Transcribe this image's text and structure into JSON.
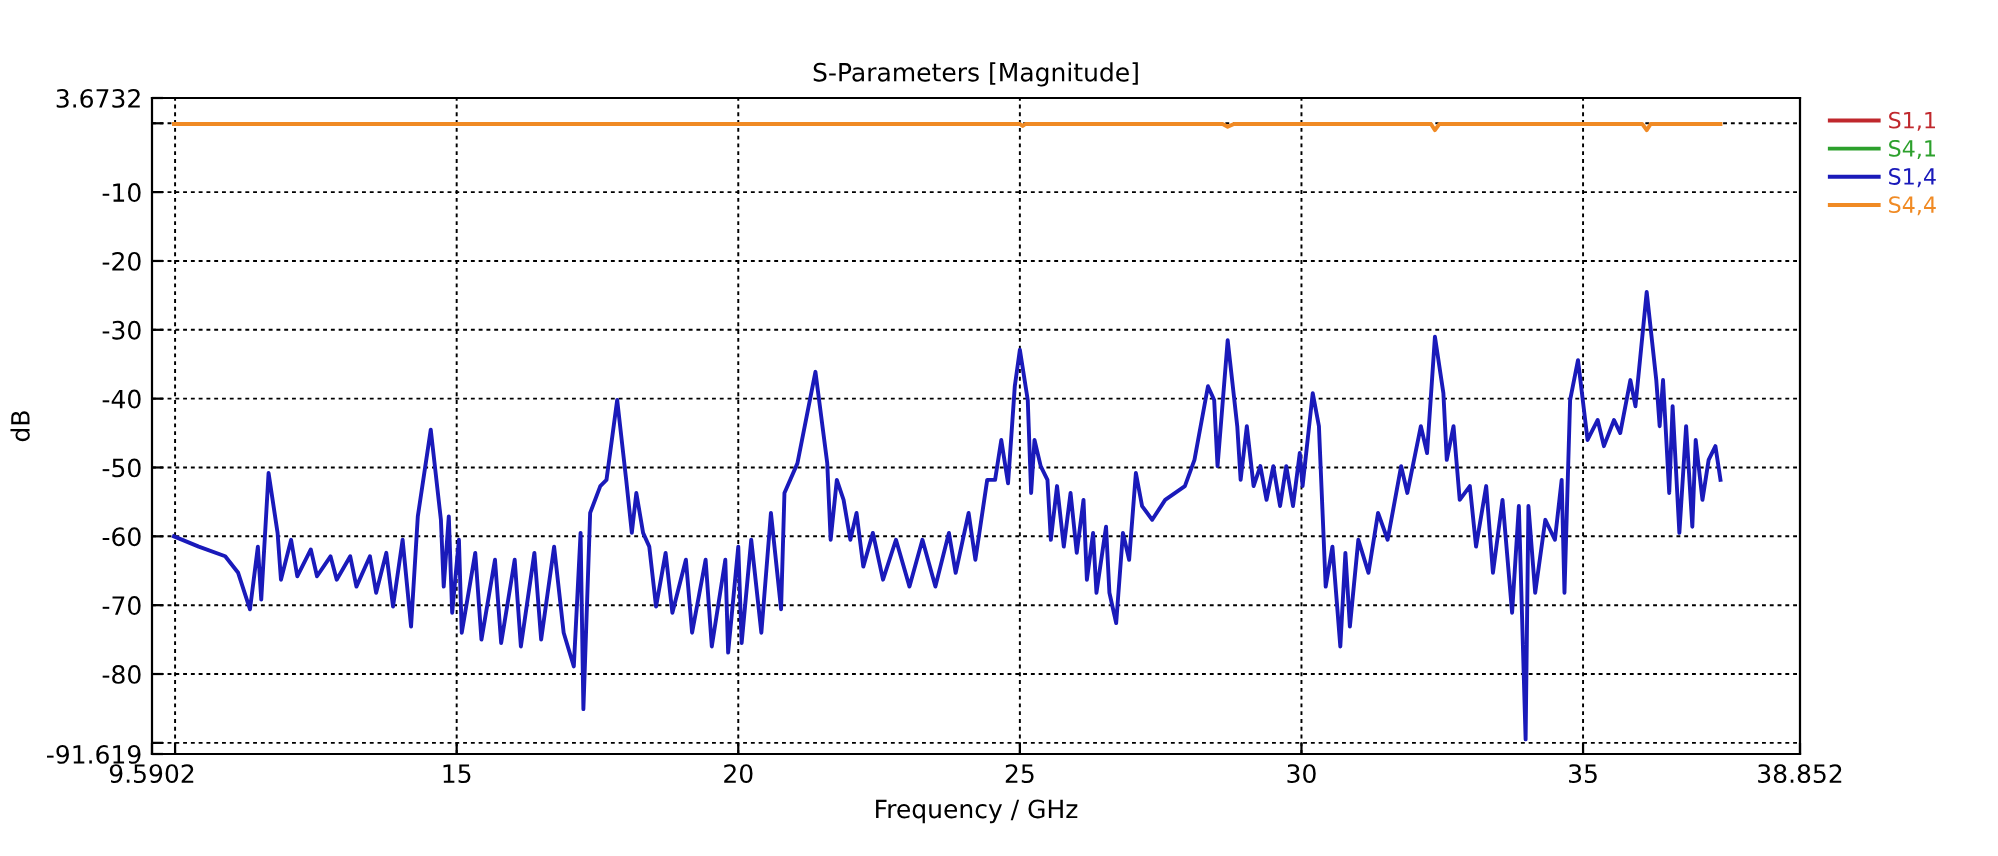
{
  "chart_data": {
    "type": "line",
    "title": "S-Parameters [Magnitude]",
    "xlabel": "Frequency / GHz",
    "ylabel": "dB",
    "xlim": [
      9.5902,
      38.852
    ],
    "ylim": [
      -91.619,
      3.6732
    ],
    "xticks": [
      9.5902,
      {
        "value": 10,
        "label": null
      },
      15,
      20,
      25,
      30,
      35,
      38.852
    ],
    "yticks": [
      -91.619,
      {
        "value": -90,
        "label": null
      },
      -80,
      -70,
      -60,
      -50,
      -40,
      -30,
      -20,
      -10,
      {
        "value": 0,
        "label": null
      },
      3.6732
    ],
    "grid": true,
    "legend": "right",
    "line_style": "solid",
    "marker": "none",
    "series": [
      {
        "name": "S1,1",
        "color": "#c0282d"
      },
      {
        "name": "S4,1",
        "color": "#2ca02c"
      },
      {
        "name": "S1,4",
        "color": "#1a1aba",
        "x": [
          9.98,
          10.42,
          10.89,
          11.12,
          11.33,
          11.47,
          11.53,
          11.66,
          11.82,
          11.88,
          12.06,
          12.17,
          12.41,
          12.52,
          12.76,
          12.87,
          13.11,
          13.22,
          13.46,
          13.57,
          13.75,
          13.87,
          14.04,
          14.19,
          14.31,
          14.54,
          14.72,
          14.77,
          14.86,
          14.92,
          15.04,
          15.09,
          15.33,
          15.44,
          15.68,
          15.79,
          16.03,
          16.14,
          16.38,
          16.5,
          16.73,
          16.9,
          17.08,
          17.2,
          17.25,
          17.37,
          17.55,
          17.66,
          17.85,
          18.01,
          18.11,
          18.19,
          18.31,
          18.42,
          18.54,
          18.71,
          18.83,
          19.07,
          19.18,
          19.42,
          19.53,
          19.77,
          19.82,
          20.0,
          20.06,
          20.23,
          20.41,
          20.58,
          20.76,
          20.82,
          21.05,
          21.37,
          21.58,
          21.64,
          21.75,
          21.87,
          21.99,
          22.1,
          22.22,
          22.39,
          22.57,
          22.8,
          23.04,
          23.27,
          23.5,
          23.74,
          23.86,
          24.09,
          24.21,
          24.42,
          24.56,
          24.67,
          24.79,
          24.91,
          25.0,
          25.14,
          25.2,
          25.26,
          25.37,
          25.49,
          25.55,
          25.66,
          25.78,
          25.9,
          26.01,
          26.13,
          26.19,
          26.3,
          26.36,
          26.53,
          26.59,
          26.71,
          26.83,
          26.94,
          27.06,
          27.17,
          27.35,
          27.58,
          27.93,
          28.1,
          28.34,
          28.45,
          28.51,
          28.69,
          28.86,
          28.92,
          29.03,
          29.15,
          29.27,
          29.38,
          29.5,
          29.62,
          29.73,
          29.85,
          29.97,
          30.02,
          30.2,
          30.31,
          30.43,
          30.55,
          30.69,
          30.78,
          30.86,
          31.01,
          31.19,
          31.36,
          31.53,
          31.77,
          31.88,
          32.12,
          32.23,
          32.37,
          32.52,
          32.58,
          32.7,
          32.81,
          32.99,
          33.1,
          33.28,
          33.4,
          33.57,
          33.74,
          33.86,
          33.98,
          34.03,
          34.15,
          34.33,
          34.5,
          34.62,
          34.67,
          34.77,
          34.91,
          35.08,
          35.26,
          35.37,
          35.55,
          35.66,
          35.84,
          35.93,
          36.13,
          36.3,
          36.36,
          36.42,
          36.53,
          36.59,
          36.71,
          36.83,
          36.94,
          37.0,
          37.12,
          37.23,
          37.35,
          37.44
        ],
        "values": [
          -60.0,
          -61.5,
          -62.9,
          -65.3,
          -70.6,
          -61.5,
          -69.2,
          -50.8,
          -59.5,
          -66.3,
          -60.5,
          -65.8,
          -61.9,
          -65.8,
          -62.9,
          -66.3,
          -62.9,
          -67.3,
          -62.9,
          -68.2,
          -62.4,
          -70.2,
          -60.5,
          -73.1,
          -57.1,
          -44.5,
          -57.6,
          -67.3,
          -57.1,
          -71.1,
          -60.5,
          -74.0,
          -62.4,
          -75.0,
          -63.4,
          -75.5,
          -63.4,
          -76.0,
          -62.4,
          -75.0,
          -61.5,
          -74.0,
          -78.9,
          -59.5,
          -85.1,
          -56.6,
          -52.7,
          -51.8,
          -40.2,
          -51.8,
          -59.5,
          -53.7,
          -59.5,
          -61.5,
          -70.2,
          -62.4,
          -71.1,
          -63.4,
          -74.0,
          -63.4,
          -76.0,
          -63.4,
          -76.9,
          -61.5,
          -75.5,
          -60.5,
          -74.0,
          -56.6,
          -70.6,
          -53.7,
          -49.4,
          -36.1,
          -49.4,
          -60.5,
          -51.8,
          -54.7,
          -60.5,
          -56.6,
          -64.4,
          -59.5,
          -66.3,
          -60.5,
          -67.3,
          -60.5,
          -67.3,
          -59.5,
          -65.3,
          -56.6,
          -63.4,
          -51.8,
          -51.8,
          -46.0,
          -52.3,
          -38.2,
          -32.9,
          -40.2,
          -53.7,
          -46.0,
          -49.8,
          -51.8,
          -60.5,
          -52.7,
          -61.5,
          -53.7,
          -62.4,
          -54.7,
          -66.3,
          -59.5,
          -68.2,
          -58.6,
          -68.2,
          -72.6,
          -59.5,
          -63.4,
          -50.8,
          -55.6,
          -57.6,
          -54.7,
          -52.7,
          -48.9,
          -38.2,
          -40.2,
          -49.8,
          -31.5,
          -44.0,
          -51.8,
          -44.0,
          -52.7,
          -49.8,
          -54.7,
          -49.8,
          -55.6,
          -49.8,
          -55.6,
          -47.9,
          -52.7,
          -39.2,
          -44.0,
          -67.3,
          -61.5,
          -76.0,
          -62.4,
          -73.1,
          -60.5,
          -65.3,
          -56.6,
          -60.5,
          -49.8,
          -53.7,
          -44.0,
          -47.9,
          -31.0,
          -39.2,
          -48.9,
          -44.0,
          -54.7,
          -52.7,
          -61.5,
          -52.7,
          -65.3,
          -54.7,
          -71.1,
          -55.6,
          -89.5,
          -55.6,
          -68.2,
          -57.6,
          -60.5,
          -51.8,
          -68.2,
          -40.2,
          -34.4,
          -46.0,
          -43.1,
          -46.9,
          -43.1,
          -45.0,
          -37.3,
          -41.1,
          -24.5,
          -37.3,
          -44.0,
          -37.3,
          -53.7,
          -41.1,
          -59.5,
          -44.0,
          -58.6,
          -46.0,
          -54.7,
          -48.9,
          -46.9,
          -51.8
        ]
      },
      {
        "name": "S4,4",
        "color": "#f08a24",
        "x": [
          9.98,
          25.0,
          25.05,
          25.1,
          28.6,
          28.69,
          28.8,
          32.3,
          32.37,
          32.45,
          36.05,
          36.13,
          36.2,
          37.44
        ],
        "values": [
          -0.1,
          -0.1,
          -0.4,
          -0.1,
          -0.1,
          -0.5,
          -0.1,
          -0.1,
          -1.0,
          -0.1,
          -0.1,
          -1.0,
          -0.1,
          -0.1
        ]
      }
    ]
  }
}
